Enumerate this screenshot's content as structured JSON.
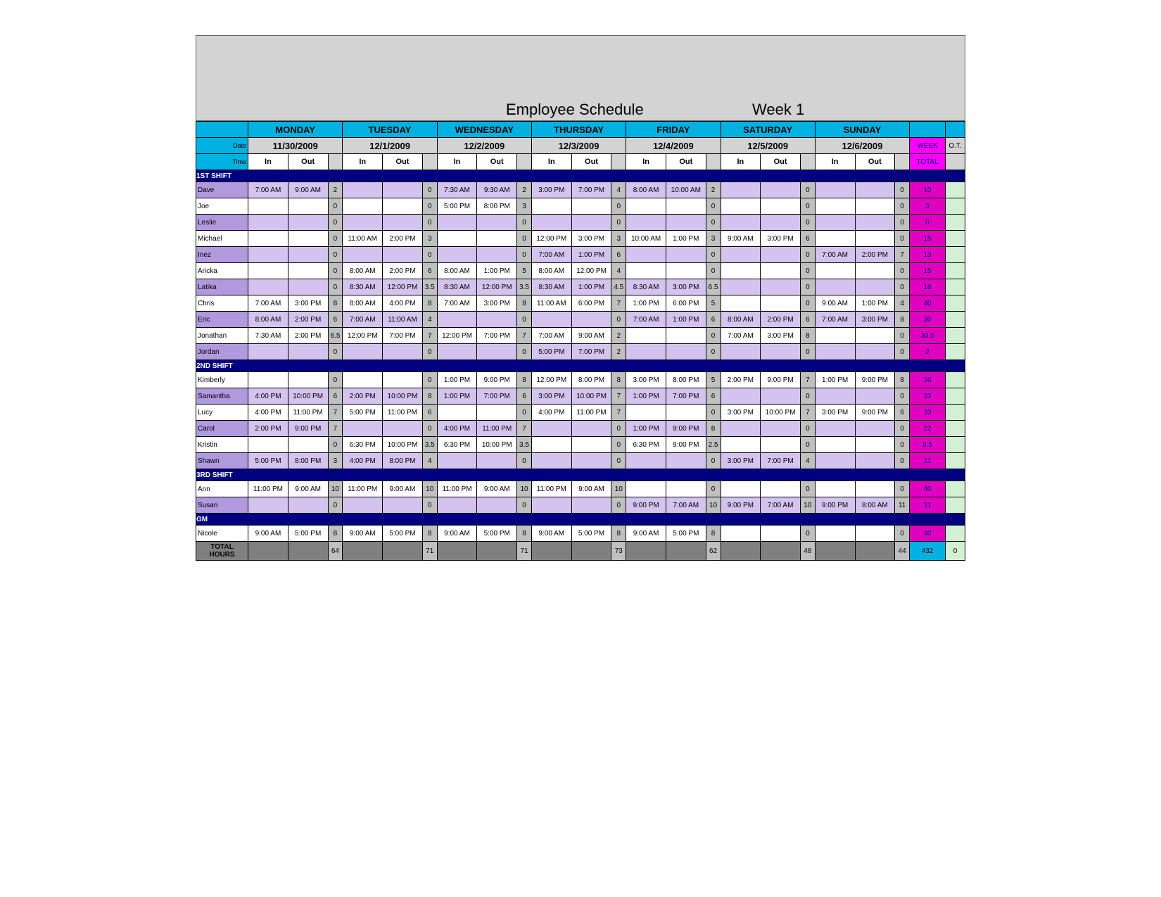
{
  "title": "Employee Schedule",
  "weekLabel": "Week 1",
  "columns": {
    "nameWidth": 64,
    "cellWidth": 49,
    "hoursWidth": 18,
    "weekTotWidth": 44,
    "otWidth": 24
  },
  "headers": {
    "dateLabel": "Date",
    "timeLabel": "Time",
    "days": [
      "MONDAY",
      "TUESDAY",
      "WEDNESDAY",
      "THURSDAY",
      "FRIDAY",
      "SATURDAY",
      "SUNDAY"
    ],
    "dates": [
      "11/30/2009",
      "12/1/2009",
      "12/2/2009",
      "12/3/2009",
      "12/4/2009",
      "12/5/2009",
      "12/6/2009"
    ],
    "in": "In",
    "out": "Out",
    "week": "WEEK",
    "total": "TOTAL",
    "ot": "O.T."
  },
  "colors": {
    "cyan": "#00b1e1",
    "lightgray": "#d3d3d3",
    "medgray": "#bfbfbf",
    "navy": "#000080",
    "purpleA": "#b099dd",
    "purpleB": "#d3c3ee",
    "magenta": "#e000c0",
    "pink": "#ff00ff",
    "mint": "#d4f0d4",
    "gray": "#808080",
    "hoursGray": "#c0c0c0",
    "magentaText": "#000080",
    "weekTextDark": "#00005c"
  },
  "sections": [
    {
      "label": "1ST SHIFT",
      "rows": [
        {
          "name": "Dave",
          "alt": true,
          "cells": [
            [
              "7:00 AM",
              "9:00 AM",
              "2"
            ],
            [
              "",
              "",
              "0"
            ],
            [
              "7:30 AM",
              "9:30 AM",
              "2"
            ],
            [
              "3:00 PM",
              "7:00 PM",
              "4"
            ],
            [
              "8:00 AM",
              "10:00 AM",
              "2"
            ],
            [
              "",
              "",
              "0"
            ],
            [
              "",
              "",
              "0"
            ]
          ],
          "week": "10"
        },
        {
          "name": "Joe",
          "alt": false,
          "cells": [
            [
              "",
              "",
              "0"
            ],
            [
              "",
              "",
              "0"
            ],
            [
              "5:00 PM",
              "8:00 PM",
              "3"
            ],
            [
              "",
              "",
              "0"
            ],
            [
              "",
              "",
              "0"
            ],
            [
              "",
              "",
              "0"
            ],
            [
              "",
              "",
              "0"
            ]
          ],
          "week": "3"
        },
        {
          "name": "Leslie",
          "alt": true,
          "cells": [
            [
              "",
              "",
              "0"
            ],
            [
              "",
              "",
              "0"
            ],
            [
              "",
              "",
              "0"
            ],
            [
              "",
              "",
              "0"
            ],
            [
              "",
              "",
              "0"
            ],
            [
              "",
              "",
              "0"
            ],
            [
              "",
              "",
              "0"
            ]
          ],
          "week": "0"
        },
        {
          "name": "Michael",
          "alt": false,
          "cells": [
            [
              "",
              "",
              "0"
            ],
            [
              "11:00 AM",
              "2:00 PM",
              "3"
            ],
            [
              "",
              "",
              "0"
            ],
            [
              "12:00 PM",
              "3:00 PM",
              "3"
            ],
            [
              "10:00 AM",
              "1:00 PM",
              "3"
            ],
            [
              "9:00 AM",
              "3:00 PM",
              "6"
            ],
            [
              "",
              "",
              "0"
            ]
          ],
          "week": "15"
        },
        {
          "name": "Inez",
          "alt": true,
          "diag": [
            0,
            1,
            2,
            4,
            5
          ],
          "cells": [
            [
              "",
              "",
              "0"
            ],
            [
              "",
              "",
              "0"
            ],
            [
              "",
              "",
              "0"
            ],
            [
              "7:00 AM",
              "1:00 PM",
              "6"
            ],
            [
              "",
              "",
              "0"
            ],
            [
              "",
              "",
              "0"
            ],
            [
              "7:00 AM",
              "2:00 PM",
              "7"
            ]
          ],
          "week": "13"
        },
        {
          "name": "Aricka",
          "alt": false,
          "diag": [
            0,
            4,
            5,
            6
          ],
          "cells": [
            [
              "",
              "",
              "0"
            ],
            [
              "8:00 AM",
              "2:00 PM",
              "6"
            ],
            [
              "8:00 AM",
              "1:00 PM",
              "5"
            ],
            [
              "8:00 AM",
              "12:00 PM",
              "4"
            ],
            [
              "",
              "",
              "0"
            ],
            [
              "",
              "",
              "0"
            ],
            [
              "",
              "",
              "0"
            ]
          ],
          "week": "15"
        },
        {
          "name": "Latika",
          "alt": true,
          "diag": [
            5,
            6
          ],
          "cells": [
            [
              "",
              "",
              "0"
            ],
            [
              "8:30 AM",
              "12:00 PM",
              "3.5"
            ],
            [
              "8:30 AM",
              "12:00 PM",
              "3.5"
            ],
            [
              "8:30 AM",
              "1:00 PM",
              "4.5"
            ],
            [
              "8:30 AM",
              "3:00 PM",
              "6.5"
            ],
            [
              "",
              "",
              "0"
            ],
            [
              "",
              "",
              "0"
            ]
          ],
          "week": "18"
        },
        {
          "name": "Chris",
          "alt": false,
          "cells": [
            [
              "7:00 AM",
              "3:00 PM",
              "8"
            ],
            [
              "8:00 AM",
              "4:00 PM",
              "8"
            ],
            [
              "7:00 AM",
              "3:00 PM",
              "8"
            ],
            [
              "11:00 AM",
              "6:00 PM",
              "7"
            ],
            [
              "1:00 PM",
              "6:00 PM",
              "5"
            ],
            [
              "",
              "",
              "0"
            ],
            [
              "9:00 AM",
              "1:00 PM",
              "4"
            ]
          ],
          "week": "40"
        },
        {
          "name": "Eric",
          "alt": true,
          "cells": [
            [
              "8:00 AM",
              "2:00 PM",
              "6"
            ],
            [
              "7:00 AM",
              "11:00 AM",
              "4"
            ],
            [
              "",
              "",
              "0"
            ],
            [
              "",
              "",
              "0"
            ],
            [
              "7:00 AM",
              "1:00 PM",
              "6"
            ],
            [
              "8:00 AM",
              "2:00 PM",
              "6"
            ],
            [
              "7:00 AM",
              "3:00 PM",
              "8"
            ]
          ],
          "week": "30"
        },
        {
          "name": "Jonathan",
          "alt": false,
          "cells": [
            [
              "7:30 AM",
              "2:00 PM",
              "6.5"
            ],
            [
              "12:00 PM",
              "7:00 PM",
              "7"
            ],
            [
              "12:00 PM",
              "7:00 PM",
              "7"
            ],
            [
              "7:00 AM",
              "9:00 AM",
              "2"
            ],
            [
              "",
              "",
              "0"
            ],
            [
              "7:00 AM",
              "3:00 PM",
              "8"
            ],
            [
              "",
              "",
              "0"
            ]
          ],
          "week": "30.5"
        },
        {
          "name": "Jordan",
          "alt": true,
          "cells": [
            [
              "",
              "",
              "0"
            ],
            [
              "",
              "",
              "0"
            ],
            [
              "",
              "",
              "0"
            ],
            [
              "5:00 PM",
              "7:00 PM",
              "2"
            ],
            [
              "",
              "",
              "0"
            ],
            [
              "",
              "",
              "0"
            ],
            [
              "",
              "",
              "0"
            ]
          ],
          "week": "2"
        }
      ]
    },
    {
      "label": "2ND SHIFT",
      "rows": [
        {
          "name": "Kimberly",
          "alt": false,
          "diag": [
            0,
            1
          ],
          "cells": [
            [
              "",
              "",
              "0"
            ],
            [
              "",
              "",
              "0"
            ],
            [
              "1:00 PM",
              "9:00 PM",
              "8"
            ],
            [
              "12:00 PM",
              "8:00 PM",
              "8"
            ],
            [
              "3:00 PM",
              "8:00 PM",
              "5"
            ],
            [
              "2:00 PM",
              "9:00 PM",
              "7"
            ],
            [
              "1:00 PM",
              "9:00 PM",
              "8"
            ]
          ],
          "week": "36"
        },
        {
          "name": "Samantha",
          "alt": true,
          "diag": [
            5,
            6
          ],
          "cells": [
            [
              "4:00 PM",
              "10:00 PM",
              "6"
            ],
            [
              "2:00 PM",
              "10:00 PM",
              "8"
            ],
            [
              "1:00 PM",
              "7:00 PM",
              "6"
            ],
            [
              "3:00 PM",
              "10:00 PM",
              "7"
            ],
            [
              "1:00 PM",
              "7:00 PM",
              "6"
            ],
            [
              "",
              "",
              "0"
            ],
            [
              "",
              "",
              "0"
            ]
          ],
          "week": "33"
        },
        {
          "name": "Lucy",
          "alt": false,
          "diag": [
            2,
            4
          ],
          "cells": [
            [
              "4:00 PM",
              "11:00 PM",
              "7"
            ],
            [
              "5:00 PM",
              "11:00 PM",
              "6"
            ],
            [
              "",
              "",
              "0"
            ],
            [
              "4:00 PM",
              "11:00 PM",
              "7"
            ],
            [
              "",
              "",
              "0"
            ],
            [
              "3:00 PM",
              "10:00 PM",
              "7"
            ],
            [
              "3:00 PM",
              "9:00 PM",
              "6"
            ]
          ],
          "week": "33"
        },
        {
          "name": "Carol",
          "alt": true,
          "diag": [
            1,
            3
          ],
          "cells": [
            [
              "2:00 PM",
              "9:00 PM",
              "7"
            ],
            [
              "",
              "",
              "0"
            ],
            [
              "4:00 PM",
              "11:00 PM",
              "7"
            ],
            [
              "",
              "",
              "0"
            ],
            [
              "1:00 PM",
              "9:00 PM",
              "8"
            ],
            [
              "",
              "",
              "0"
            ],
            [
              "",
              "",
              "0"
            ]
          ],
          "week": "22"
        },
        {
          "name": "Kristin",
          "alt": false,
          "cells": [
            [
              "",
              "",
              "0"
            ],
            [
              "6:30 PM",
              "10:00 PM",
              "3.5"
            ],
            [
              "6:30 PM",
              "10:00 PM",
              "3.5"
            ],
            [
              "",
              "",
              "0"
            ],
            [
              "6:30 PM",
              "9:00 PM",
              "2.5"
            ],
            [
              "",
              "",
              "0"
            ],
            [
              "",
              "",
              "0"
            ]
          ],
          "week": "9.5"
        },
        {
          "name": "Shawn",
          "alt": true,
          "cells": [
            [
              "5:00 PM",
              "8:00 PM",
              "3"
            ],
            [
              "4:00 PM",
              "8:00 PM",
              "4"
            ],
            [
              "",
              "",
              "0"
            ],
            [
              "",
              "",
              "0"
            ],
            [
              "",
              "",
              "0"
            ],
            [
              "3:00 PM",
              "7:00 PM",
              "4"
            ],
            [
              "",
              "",
              "0"
            ]
          ],
          "week": "11"
        }
      ]
    },
    {
      "label": "3RD SHIFT",
      "rows": [
        {
          "name": "Ann",
          "alt": false,
          "diag": [
            4,
            5,
            6
          ],
          "cells": [
            [
              "11:00 PM",
              "9:00 AM",
              "10"
            ],
            [
              "11:00 PM",
              "9:00 AM",
              "10"
            ],
            [
              "11:00 PM",
              "9:00 AM",
              "10"
            ],
            [
              "11:00 PM",
              "9:00 AM",
              "10"
            ],
            [
              "",
              "",
              "0"
            ],
            [
              "",
              "",
              "0"
            ],
            [
              "",
              "",
              "0"
            ]
          ],
          "week": "40"
        },
        {
          "name": "Susan",
          "alt": true,
          "diag": [
            1,
            2,
            3
          ],
          "cells": [
            [
              "",
              "",
              "0"
            ],
            [
              "",
              "",
              "0"
            ],
            [
              "",
              "",
              "0"
            ],
            [
              "",
              "",
              "0"
            ],
            [
              "9:00 PM",
              "7:00 AM",
              "10"
            ],
            [
              "9:00 PM",
              "7:00 AM",
              "10"
            ],
            [
              "9:00 PM",
              "8:00 AM",
              "11"
            ]
          ],
          "week": "31"
        }
      ]
    },
    {
      "label": "GM",
      "rows": [
        {
          "name": "Nicole",
          "alt": false,
          "cells": [
            [
              "9:00 AM",
              "5:00 PM",
              "8"
            ],
            [
              "9:00 AM",
              "5:00 PM",
              "8"
            ],
            [
              "9:00 AM",
              "5:00 PM",
              "8"
            ],
            [
              "9:00 AM",
              "5:00 PM",
              "8"
            ],
            [
              "9:00 AM",
              "5:00 PM",
              "8"
            ],
            [
              "",
              "",
              "0"
            ],
            [
              "",
              "",
              "0"
            ]
          ],
          "week": "40"
        }
      ]
    }
  ],
  "totals": {
    "label": "TOTAL HOURS",
    "days": [
      "64",
      "71",
      "71",
      "73",
      "62",
      "48",
      "44"
    ],
    "week": "432",
    "ot": "0"
  }
}
